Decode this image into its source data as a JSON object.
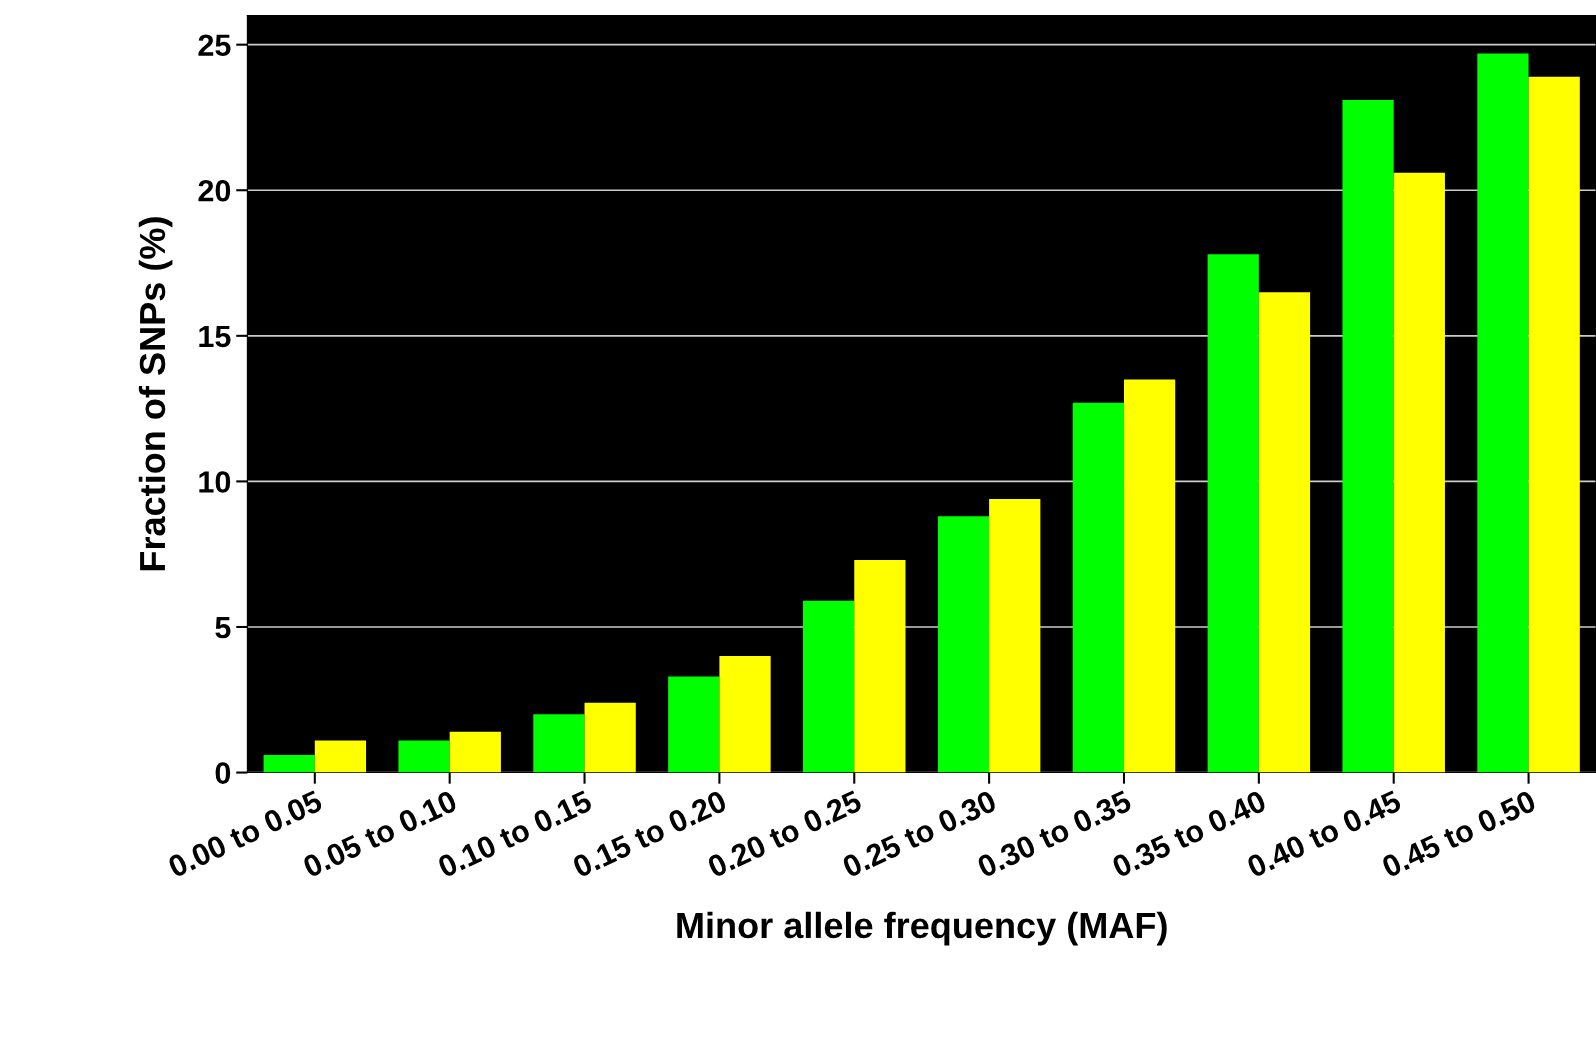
{
  "chart_data": {
    "type": "bar",
    "xlabel": "Minor allele frequency (MAF)",
    "ylabel": "Fraction of SNPs (%)",
    "categories": [
      "0.00 to 0.05",
      "0.05 to 0.10",
      "0.10 to 0.15",
      "0.15 to 0.20",
      "0.20 to 0.25",
      "0.25 to 0.30",
      "0.30 to 0.35",
      "0.35 to 0.40",
      "0.40 to 0.45",
      "0.45 to 0.50"
    ],
    "series": [
      {
        "color": "#00ff00",
        "values": [
          0.6,
          1.1,
          2.0,
          3.3,
          5.9,
          8.8,
          12.7,
          17.8,
          23.1,
          24.7
        ]
      },
      {
        "color": "#ffff00",
        "values": [
          1.1,
          1.4,
          2.4,
          4.0,
          7.3,
          9.4,
          13.5,
          16.5,
          20.6,
          23.9
        ]
      }
    ],
    "ylim": [
      0,
      26
    ],
    "yticks": [
      0,
      5,
      10,
      15,
      20,
      25
    ],
    "grid": "y",
    "legend": false
  }
}
